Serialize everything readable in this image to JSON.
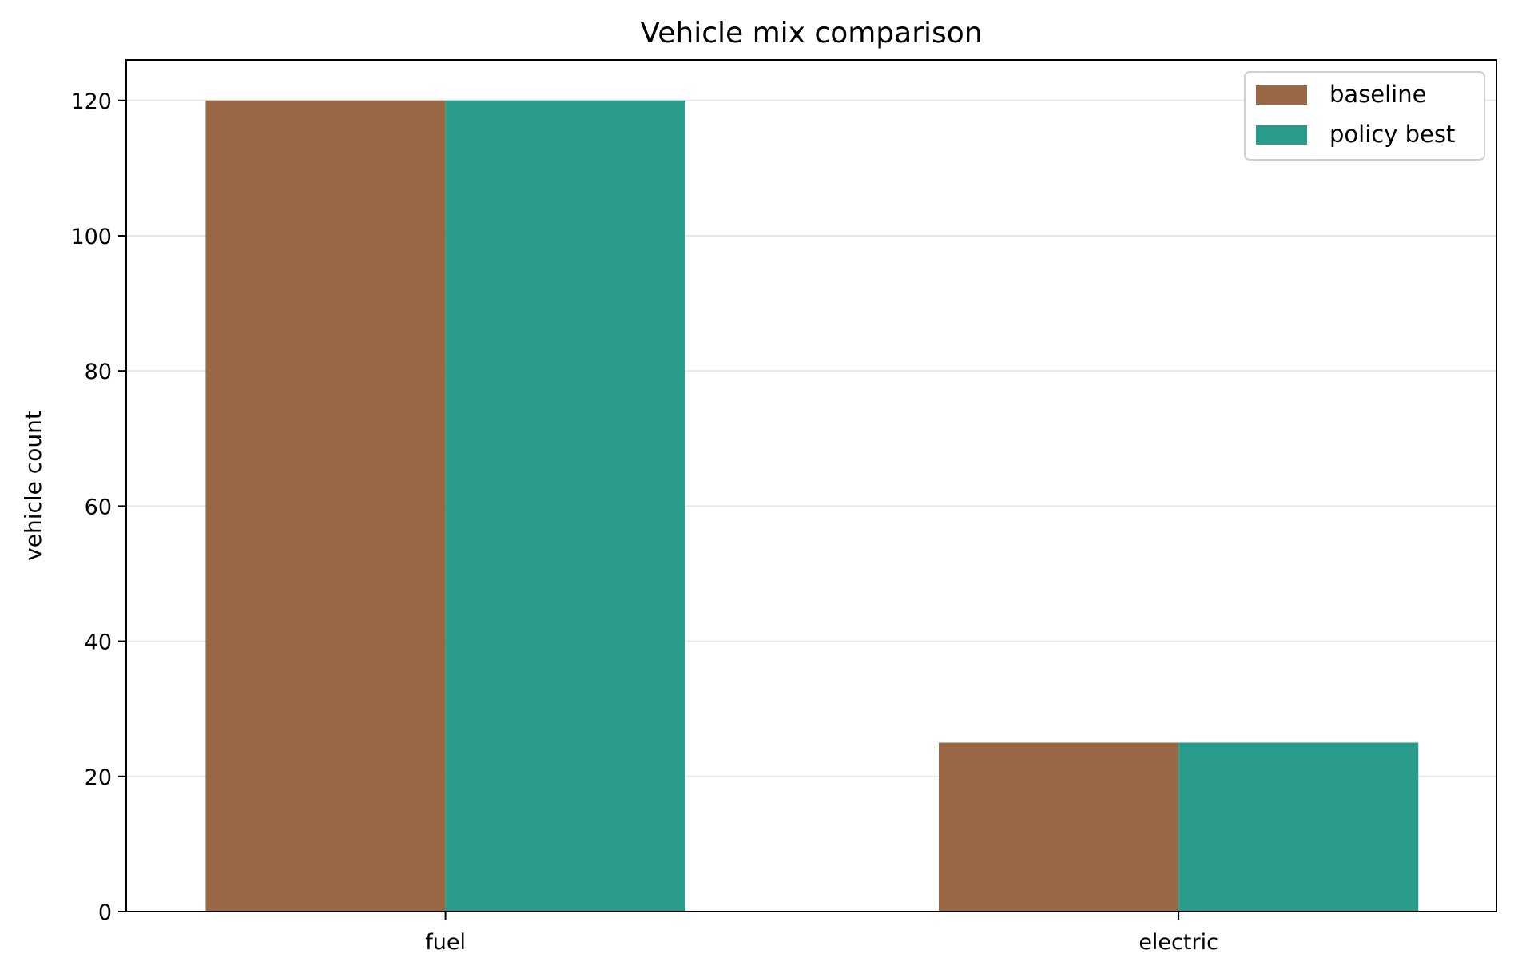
{
  "chart_data": {
    "type": "bar",
    "title": "Vehicle mix comparison",
    "xlabel": "",
    "ylabel": "vehicle count",
    "categories": [
      "fuel",
      "electric"
    ],
    "series": [
      {
        "name": "baseline",
        "values": [
          120,
          25
        ],
        "color": "#9a6744"
      },
      {
        "name": "policy best",
        "values": [
          120,
          25
        ],
        "color": "#2a9c8c"
      }
    ],
    "ylim": [
      0,
      126
    ],
    "yticks": [
      0,
      20,
      40,
      60,
      80,
      100,
      120
    ],
    "grid": "y",
    "legend_position": "top-right"
  }
}
